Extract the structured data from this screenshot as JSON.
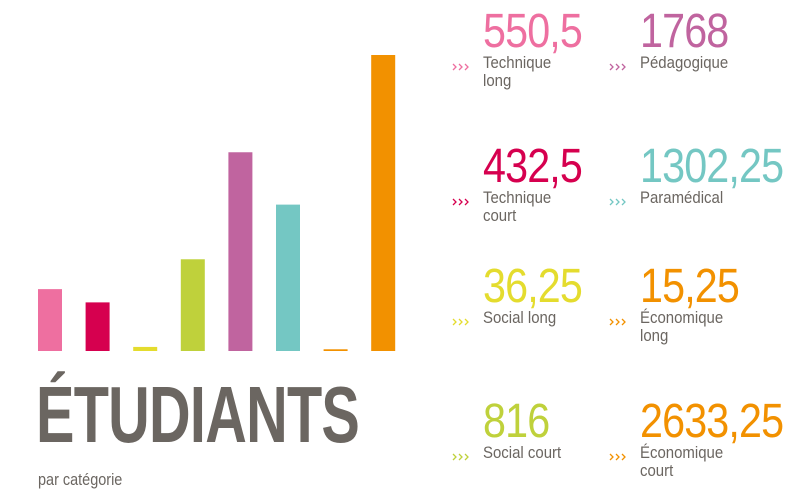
{
  "chart_data": {
    "type": "bar",
    "title": "ÉTUDIANTS",
    "subtitle": "par catégorie",
    "categories": [
      "Technique long",
      "Technique court",
      "Social long",
      "Social court",
      "Pédagogique",
      "Paramédical",
      "Économique long",
      "Économique court"
    ],
    "values": [
      550.5,
      432.5,
      36.25,
      816,
      1768,
      1302.25,
      15.25,
      2633.25
    ],
    "value_labels": [
      "550,5",
      "432,5",
      "36,25",
      "816",
      "1768",
      "1302,25",
      "15,25",
      "2633,25"
    ],
    "colors": [
      "#ee6fa0",
      "#d6004f",
      "#e4dc2e",
      "#bfd13b",
      "#c0649f",
      "#74c7c3",
      "#f29100",
      "#f29100"
    ]
  }
}
